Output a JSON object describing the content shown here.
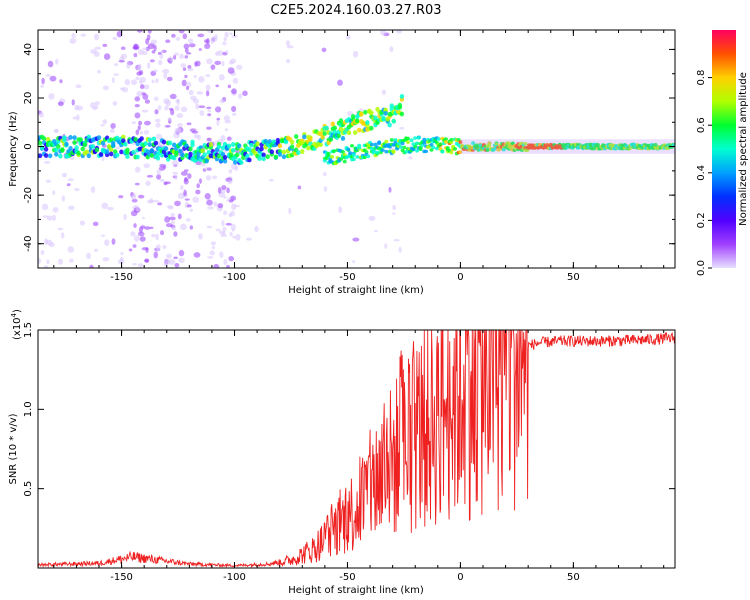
{
  "title": "C2E5.2024.160.03.27.R03",
  "colors": {
    "snr_line": "#ee2020",
    "axis": "#000000",
    "background": "#ffffff"
  },
  "chart_data": [
    {
      "type": "heatmap",
      "name": "spectrogram",
      "xlabel": "Height of straight line (km)",
      "ylabel": "Frequency (Hz)",
      "xlim": [
        -187,
        95
      ],
      "ylim": [
        -50,
        48
      ],
      "xticks": [
        -150,
        -100,
        -50,
        0,
        50
      ],
      "xtick_labels": [
        "-150",
        "-100",
        "-50",
        "0",
        "50"
      ],
      "yticks": [
        -40,
        -20,
        0,
        20,
        40
      ],
      "ytick_labels": [
        "-40",
        "-20",
        "0",
        "20",
        "40"
      ],
      "colormap": [
        "#e8e0ff",
        "#8c00ff",
        "#2000ff",
        "#00a0ff",
        "#00ffd0",
        "#00ff30",
        "#b0ff00",
        "#ffd000",
        "#ff5000",
        "#ff0060"
      ],
      "colorbar": {
        "label": "Normalized spectral amplitude",
        "range": [
          0.0,
          1.0
        ],
        "ticks": [
          0.0,
          0.2,
          0.4,
          0.6,
          0.8
        ],
        "tick_labels": [
          "0.0",
          "0.2",
          "0.4",
          "0.6",
          "0.8"
        ]
      },
      "traces": [
        {
          "name": "main-band",
          "points": [
            [
              -187,
              0
            ],
            [
              -150,
              0
            ],
            [
              -100,
              -3
            ],
            [
              -75,
              0
            ],
            [
              -55,
              6
            ],
            [
              -45,
              10
            ],
            [
              -30,
              13
            ],
            [
              -25,
              18
            ]
          ]
        },
        {
          "name": "lower-branch",
          "points": [
            [
              -60,
              -5
            ],
            [
              -40,
              -1
            ],
            [
              -20,
              1
            ],
            [
              0,
              0
            ],
            [
              30,
              0
            ],
            [
              95,
              0
            ]
          ]
        }
      ]
    },
    {
      "type": "line",
      "name": "snr",
      "xlabel": "Height of straight line (km)",
      "ylabel": "SNR (10 * v/v)",
      "scale_label": "(x10",
      "scale_exp": "4",
      "scale_close": ")",
      "xlim": [
        -187,
        95
      ],
      "ylim": [
        0,
        15000
      ],
      "xticks": [
        -150,
        -100,
        -50,
        0,
        50
      ],
      "xtick_labels": [
        "-150",
        "-100",
        "-50",
        "0",
        "50"
      ],
      "yticks": [
        5000,
        10000,
        15000
      ],
      "ytick_labels": [
        "0.5",
        "1.0",
        "1.5"
      ],
      "envelope": {
        "x": [
          -187,
          -160,
          -145,
          -120,
          -100,
          -85,
          -75,
          -65,
          -55,
          -45,
          -35,
          -25,
          -15,
          -5,
          5,
          15,
          25,
          35,
          45,
          55,
          65,
          75,
          85,
          95
        ],
        "y": [
          200,
          300,
          700,
          250,
          150,
          250,
          500,
          1200,
          2500,
          4000,
          6000,
          7500,
          9000,
          10500,
          12000,
          13000,
          13800,
          14200,
          14300,
          14300,
          14300,
          14350,
          14400,
          14500
        ]
      }
    }
  ]
}
